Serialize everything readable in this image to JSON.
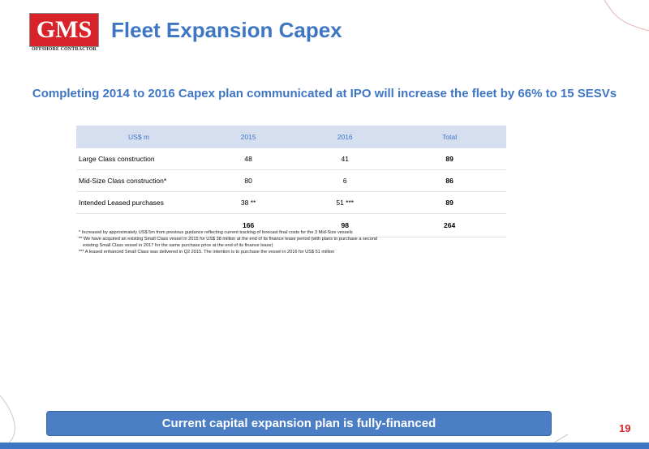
{
  "logo": {
    "main": "GMS",
    "sub": "OFFSHORE CONTRACTOR"
  },
  "title": "Fleet Expansion Capex",
  "subtitle": "Completing 2014 to 2016 Capex plan communicated at IPO will increase the fleet by 66% to 15 SESVs",
  "table": {
    "headers": [
      "US$ m",
      "2015",
      "2016",
      "Total"
    ],
    "rows": [
      [
        "Large Class construction",
        "48",
        "41",
        "89"
      ],
      [
        "Mid-Size Class construction*",
        "80",
        "6",
        "86"
      ],
      [
        "Intended Leased purchases",
        "38 **",
        "51 ***",
        "89"
      ]
    ],
    "totals": [
      "",
      "166",
      "98",
      "264"
    ]
  },
  "footnotes": [
    "* Increased by approximately US$ 5m from previous guidance reflecting current tracking of forecast final costs for the 3 Mid-Size vessels",
    "** We have acquired an existing Small Class vessel in 2015 for US$ 38 million at the end of its finance lease period (with plans to purchase a second",
    "existing Small Class vessel in 2017 for the same purchase price at the end of its finance lease)",
    "*** A leased enhanced Small Class was delivered in Q2 2015. The intention is to purchase the vessel in 2016 for US$ 51 million"
  ],
  "banner": "Current capital expansion plan is fully-financed",
  "page_number": "19",
  "colors": {
    "accent": "#3e76c3",
    "brand_red": "#d9232a",
    "header_fill": "#d5dff0",
    "banner": "#4b7ec4"
  }
}
